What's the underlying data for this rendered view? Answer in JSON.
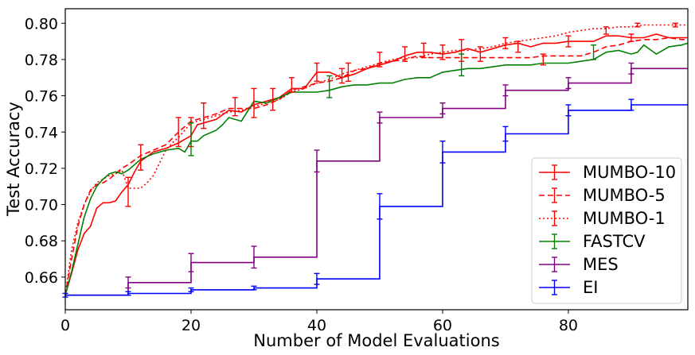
{
  "chart_data": {
    "type": "line",
    "xlabel": "Number of Model Evaluations",
    "ylabel": "Test Accuracy",
    "xlim": [
      0,
      99
    ],
    "ylim": [
      0.642,
      0.808
    ],
    "xticks": [
      0,
      20,
      40,
      60,
      80
    ],
    "yticks": [
      0.66,
      0.68,
      0.7,
      0.72,
      0.74,
      0.76,
      0.78,
      0.8
    ],
    "grid": false,
    "legend_position": "lower-right",
    "series": [
      {
        "name": "MUMBO-10",
        "color": "#ff0000",
        "style": "solid",
        "x": [
          0,
          1,
          2,
          3,
          4,
          5,
          6,
          7,
          8,
          9,
          10,
          11,
          12,
          14,
          16,
          18,
          19,
          20,
          21,
          22,
          24,
          26,
          28,
          30,
          32,
          34,
          36,
          38,
          40,
          42,
          44,
          46,
          48,
          50,
          52,
          54,
          56,
          58,
          60,
          62,
          64,
          66,
          68,
          70,
          72,
          74,
          76,
          78,
          80,
          82,
          84,
          86,
          88,
          90,
          92,
          94,
          96,
          98,
          99
        ],
        "y": [
          0.65,
          0.662,
          0.675,
          0.684,
          0.688,
          0.698,
          0.701,
          0.701,
          0.702,
          0.707,
          0.711,
          0.718,
          0.724,
          0.729,
          0.731,
          0.734,
          0.736,
          0.738,
          0.744,
          0.745,
          0.747,
          0.752,
          0.751,
          0.755,
          0.757,
          0.759,
          0.764,
          0.764,
          0.773,
          0.773,
          0.77,
          0.772,
          0.775,
          0.777,
          0.779,
          0.782,
          0.784,
          0.784,
          0.783,
          0.784,
          0.786,
          0.784,
          0.786,
          0.788,
          0.789,
          0.787,
          0.789,
          0.789,
          0.79,
          0.79,
          0.79,
          0.793,
          0.793,
          0.792,
          0.792,
          0.794,
          0.792,
          0.792,
          0.792
        ],
        "error_bars": [
          [
            10,
            0.707,
            0.008
          ],
          [
            12,
            0.726,
            0.007
          ],
          [
            18,
            0.74,
            0.008
          ],
          [
            20,
            0.74,
            0.008
          ],
          [
            22,
            0.749,
            0.007
          ],
          [
            27,
            0.754,
            0.005
          ],
          [
            30,
            0.756,
            0.008
          ],
          [
            33,
            0.758,
            0.006
          ],
          [
            36,
            0.766,
            0.004
          ],
          [
            40,
            0.773,
            0.005
          ],
          [
            44,
            0.771,
            0.004
          ],
          [
            45,
            0.773,
            0.005
          ],
          [
            50,
            0.78,
            0.004
          ],
          [
            54,
            0.783,
            0.004
          ],
          [
            57,
            0.785,
            0.004
          ],
          [
            60,
            0.784,
            0.004
          ],
          [
            63,
            0.785,
            0.006
          ],
          [
            66,
            0.783,
            0.004
          ],
          [
            70,
            0.789,
            0.003
          ],
          [
            72,
            0.787,
            0.003
          ],
          [
            80,
            0.79,
            0.003
          ],
          [
            90,
            0.792,
            0.002
          ]
        ]
      },
      {
        "name": "MUMBO-5",
        "color": "#ff0000",
        "style": "dashed",
        "x": [
          0,
          1,
          2,
          3,
          4,
          5,
          6,
          7,
          8,
          9,
          10,
          12,
          14,
          16,
          18,
          20,
          22,
          24,
          26,
          28,
          30,
          32,
          34,
          36,
          38,
          40,
          42,
          44,
          46,
          48,
          50,
          52,
          54,
          56,
          58,
          60,
          62,
          64,
          66,
          68,
          70,
          72,
          74,
          76,
          78,
          80,
          82,
          84,
          86,
          88,
          90,
          92,
          94,
          96,
          98,
          99
        ],
        "y": [
          0.65,
          0.67,
          0.688,
          0.7,
          0.708,
          0.711,
          0.712,
          0.714,
          0.717,
          0.72,
          0.722,
          0.727,
          0.73,
          0.733,
          0.74,
          0.746,
          0.748,
          0.75,
          0.753,
          0.753,
          0.753,
          0.755,
          0.758,
          0.763,
          0.765,
          0.767,
          0.768,
          0.77,
          0.774,
          0.775,
          0.778,
          0.779,
          0.78,
          0.782,
          0.781,
          0.781,
          0.781,
          0.781,
          0.781,
          0.781,
          0.781,
          0.781,
          0.781,
          0.782,
          0.782,
          0.782,
          0.782,
          0.784,
          0.787,
          0.788,
          0.79,
          0.791,
          0.791,
          0.792,
          0.791,
          0.791
        ],
        "error_bars": []
      },
      {
        "name": "MUMBO-1",
        "color": "#ff0000",
        "style": "dotted",
        "x": [
          0,
          1,
          2,
          3,
          4,
          5,
          6,
          7,
          8,
          9,
          10,
          11,
          12,
          13,
          14,
          15,
          16,
          17,
          18,
          19,
          20,
          22,
          24,
          26,
          28,
          30,
          32,
          34,
          36,
          38,
          40,
          42,
          44,
          46,
          48,
          50,
          52,
          54,
          56,
          58,
          60,
          62,
          64,
          66,
          68,
          70,
          72,
          74,
          76,
          78,
          80,
          82,
          84,
          86,
          88,
          90,
          92,
          94,
          96,
          98,
          99
        ],
        "y": [
          0.65,
          0.675,
          0.69,
          0.7,
          0.707,
          0.712,
          0.714,
          0.716,
          0.717,
          0.719,
          0.709,
          0.709,
          0.709,
          0.712,
          0.716,
          0.723,
          0.73,
          0.734,
          0.737,
          0.741,
          0.745,
          0.747,
          0.749,
          0.751,
          0.752,
          0.754,
          0.756,
          0.758,
          0.762,
          0.764,
          0.767,
          0.769,
          0.772,
          0.774,
          0.776,
          0.778,
          0.78,
          0.781,
          0.781,
          0.783,
          0.784,
          0.785,
          0.785,
          0.786,
          0.787,
          0.789,
          0.79,
          0.791,
          0.792,
          0.793,
          0.795,
          0.796,
          0.797,
          0.797,
          0.798,
          0.798,
          0.799,
          0.799,
          0.799,
          0.799,
          0.799
        ],
        "error_bars": [
          [
            76,
            0.78,
            0.003
          ],
          [
            86,
            0.796,
            0.002
          ],
          [
            91,
            0.799,
            0.001
          ],
          [
            97,
            0.799,
            0.001
          ]
        ]
      },
      {
        "name": "FASTCV",
        "color": "#008000",
        "style": "solid",
        "x": [
          0,
          1,
          2,
          3,
          4,
          5,
          6,
          7,
          8,
          9,
          10,
          12,
          14,
          16,
          18,
          19,
          20,
          21,
          22,
          24,
          25,
          26,
          28,
          30,
          32,
          34,
          36,
          38,
          40,
          42,
          44,
          46,
          48,
          50,
          52,
          54,
          56,
          58,
          60,
          62,
          64,
          66,
          68,
          70,
          72,
          74,
          76,
          78,
          80,
          82,
          84,
          86,
          88,
          90,
          91,
          92,
          94,
          96,
          98,
          99
        ],
        "y": [
          0.65,
          0.663,
          0.678,
          0.693,
          0.703,
          0.71,
          0.714,
          0.717,
          0.718,
          0.717,
          0.719,
          0.725,
          0.728,
          0.73,
          0.731,
          0.729,
          0.735,
          0.735,
          0.738,
          0.741,
          0.744,
          0.748,
          0.746,
          0.757,
          0.756,
          0.759,
          0.762,
          0.762,
          0.762,
          0.763,
          0.765,
          0.766,
          0.766,
          0.767,
          0.767,
          0.769,
          0.77,
          0.77,
          0.773,
          0.774,
          0.775,
          0.775,
          0.776,
          0.777,
          0.777,
          0.777,
          0.778,
          0.778,
          0.778,
          0.779,
          0.78,
          0.784,
          0.785,
          0.783,
          0.784,
          0.788,
          0.783,
          0.787,
          0.788,
          0.789
        ],
        "error_bars": [
          [
            20,
            0.736,
            0.009
          ],
          [
            42,
            0.765,
            0.006
          ],
          [
            63,
            0.777,
            0.006
          ],
          [
            84,
            0.784,
            0.004
          ]
        ]
      },
      {
        "name": "MES",
        "color": "#800080",
        "style": "solid",
        "step": true,
        "x": [
          0,
          10,
          20,
          30,
          40,
          50,
          60,
          70,
          80,
          90,
          99
        ],
        "y": [
          0.65,
          0.657,
          0.668,
          0.671,
          0.724,
          0.748,
          0.753,
          0.763,
          0.767,
          0.775,
          0.775
        ],
        "error_bars": [
          [
            10,
            0.657,
            0.003
          ],
          [
            20,
            0.668,
            0.005
          ],
          [
            30,
            0.671,
            0.006
          ],
          [
            40,
            0.724,
            0.006
          ],
          [
            50,
            0.748,
            0.003
          ],
          [
            60,
            0.753,
            0.003
          ],
          [
            70,
            0.763,
            0.003
          ],
          [
            80,
            0.767,
            0.003
          ],
          [
            90,
            0.775,
            0.003
          ]
        ]
      },
      {
        "name": "EI",
        "color": "#0000ff",
        "style": "solid",
        "step": true,
        "x": [
          0,
          10,
          20,
          30,
          40,
          50,
          60,
          70,
          80,
          90,
          99
        ],
        "y": [
          0.65,
          0.651,
          0.653,
          0.654,
          0.659,
          0.699,
          0.729,
          0.739,
          0.752,
          0.755,
          0.755
        ],
        "error_bars": [
          [
            0,
            0.65,
            0.001
          ],
          [
            10,
            0.651,
            0.001
          ],
          [
            20,
            0.653,
            0.001
          ],
          [
            30,
            0.654,
            0.001
          ],
          [
            40,
            0.659,
            0.003
          ],
          [
            50,
            0.699,
            0.007
          ],
          [
            60,
            0.729,
            0.006
          ],
          [
            70,
            0.739,
            0.004
          ],
          [
            80,
            0.752,
            0.003
          ],
          [
            90,
            0.755,
            0.003
          ]
        ]
      }
    ]
  }
}
